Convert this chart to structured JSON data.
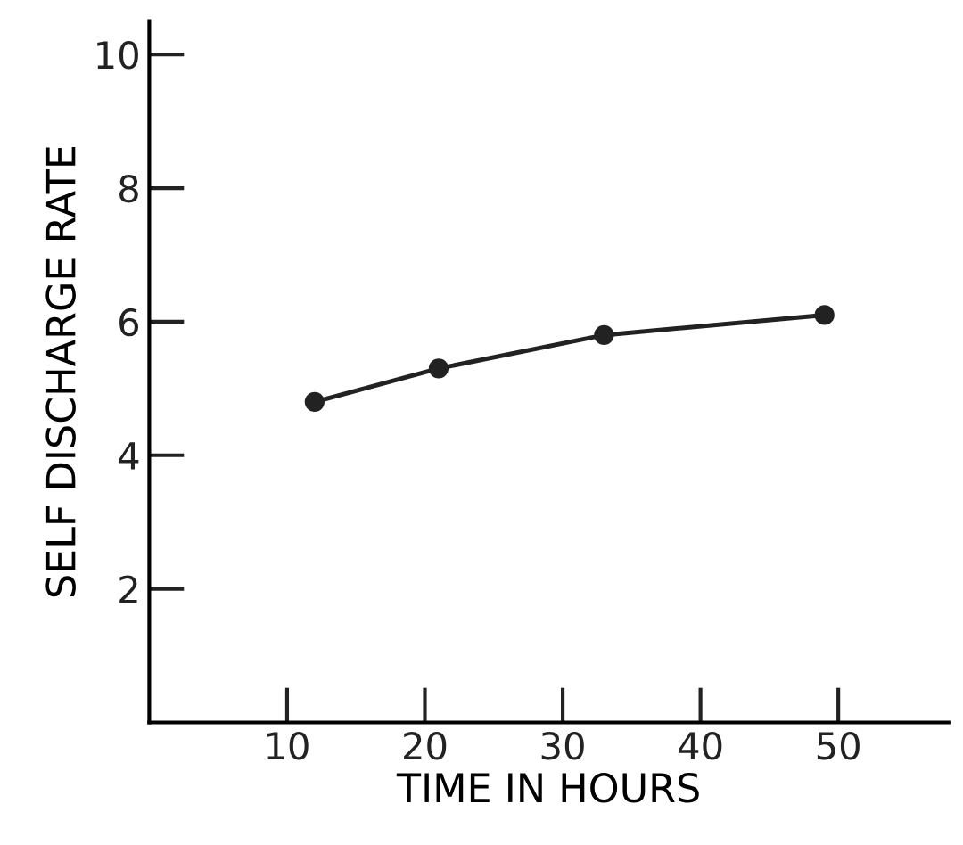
{
  "chart_data": {
    "type": "line",
    "xlabel": "TIME IN HOURS",
    "ylabel": "SELF DISCHARGE RATE",
    "x": [
      12,
      21,
      33,
      49
    ],
    "series": [
      {
        "color": "#222222",
        "values": [
          4.8,
          5.3,
          5.8,
          6.1
        ]
      }
    ],
    "xlim": [
      0,
      58
    ],
    "ylim": [
      0,
      10.5
    ],
    "xticks": [
      10,
      20,
      30,
      40,
      50
    ],
    "yticks": [
      2,
      4,
      6,
      8,
      10
    ],
    "marker": "circle",
    "line_style": "solid",
    "grid": false,
    "legend": false
  }
}
